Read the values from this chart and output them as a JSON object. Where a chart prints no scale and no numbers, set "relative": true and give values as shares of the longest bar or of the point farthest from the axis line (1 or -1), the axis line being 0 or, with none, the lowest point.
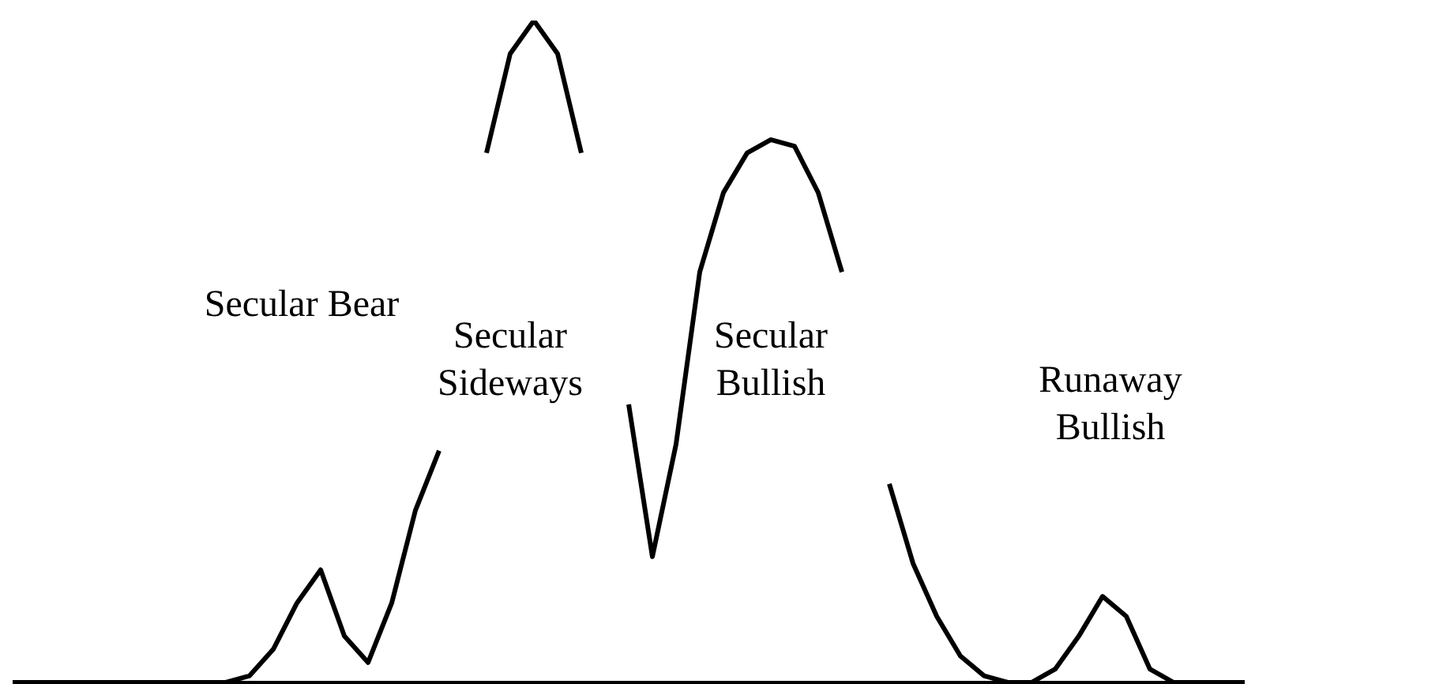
{
  "chart_data": {
    "type": "line",
    "relative": true,
    "tick_labels": false,
    "categories": [
      null,
      null,
      null,
      null,
      null,
      null,
      null,
      null,
      null,
      null,
      null,
      null,
      null,
      null,
      null,
      null,
      null,
      null,
      null,
      null,
      null,
      null,
      null,
      null,
      null,
      null,
      null,
      null,
      null,
      null,
      null,
      null,
      null,
      null,
      null,
      null,
      null,
      null,
      null,
      null,
      null,
      null,
      null,
      null,
      null,
      null,
      null,
      null,
      null,
      null,
      null,
      null,
      null
    ],
    "series": [
      {
        "color": "#000000",
        "values": [
          0,
          0,
          0,
          0,
          0,
          0,
          0,
          0,
          0,
          0,
          0.01,
          0.05,
          0.12,
          0.17,
          0.07,
          0.03,
          0.12,
          0.26,
          0.35,
          null,
          0.8,
          0.95,
          1.0,
          0.95,
          0.8,
          null,
          0.42,
          0.19,
          0.36,
          0.62,
          0.74,
          0.8,
          0.82,
          0.81,
          0.74,
          0.62,
          null,
          0.3,
          0.18,
          0.1,
          0.04,
          0.01,
          0,
          0,
          0.02,
          0.07,
          0.13,
          0.1,
          0.02,
          0,
          0,
          0,
          0
        ]
      }
    ],
    "annotations": [
      "Secular Bear",
      "Secular Sideways",
      "Secular Bullish",
      "Runaway Bullish"
    ]
  }
}
